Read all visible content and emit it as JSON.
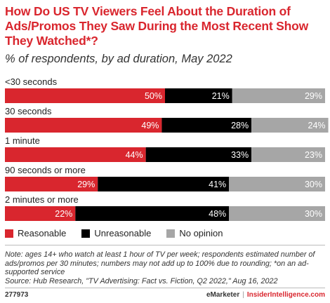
{
  "title": "How Do US TV Viewers Feel About the Duration of Ads/Promos They Saw During the Most Recent Show They Watched*?",
  "subtitle": "% of respondents, by ad duration, May 2022",
  "chart_data": {
    "type": "bar",
    "orientation": "horizontal",
    "stacked": true,
    "categories": [
      "<30 seconds",
      "30 seconds",
      "1 minute",
      "90 seconds or more",
      "2 minutes or more"
    ],
    "series": [
      {
        "name": "Reasonable",
        "values": [
          50,
          49,
          44,
          29,
          22
        ],
        "color": "#d9262e"
      },
      {
        "name": "Unreasonable",
        "values": [
          21,
          28,
          33,
          41,
          48
        ],
        "color": "#000000"
      },
      {
        "name": "No opinion",
        "values": [
          29,
          24,
          23,
          30,
          30
        ],
        "color": "#a6a6a6"
      }
    ],
    "value_suffix": "%",
    "xlim": [
      0,
      100
    ],
    "legend": "bottom-left"
  },
  "note": "Note: ages 14+ who watch at least 1 hour of TV per week; respondents estimated number of ads/promos per 30 minutes; numbers may not add up to 100% due to rounding; *on an ad-supported service",
  "source": "Source: Hub Research, \"TV Advertising: Fact vs. Fiction, Q2 2022,\" Aug 16, 2022",
  "footer": {
    "id": "277973",
    "brand": "eMarketer",
    "separator": "|",
    "site": "InsiderIntelligence.com"
  }
}
